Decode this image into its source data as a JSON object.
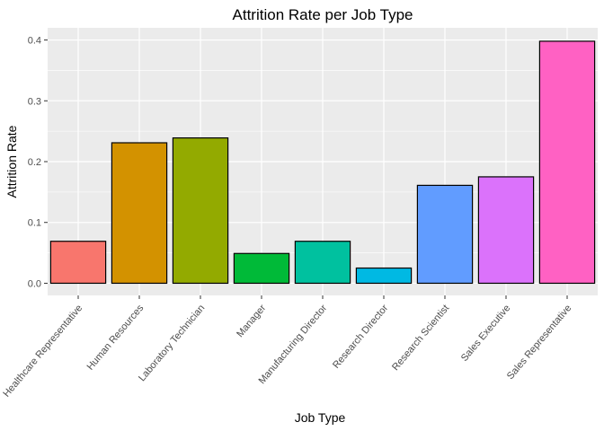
{
  "chart_data": {
    "type": "bar",
    "title": "Attrition Rate per Job Type",
    "xlabel": "Job Type",
    "ylabel": "Attrition Rate",
    "categories": [
      "Healthcare Representative",
      "Human Resources",
      "Laboratory Technician",
      "Manager",
      "Manufacturing Director",
      "Research Director",
      "Research Scientist",
      "Sales Executive",
      "Sales Representative"
    ],
    "values": [
      0.069,
      0.231,
      0.239,
      0.049,
      0.069,
      0.025,
      0.161,
      0.175,
      0.398
    ],
    "colors": [
      "#F8766D",
      "#D39200",
      "#93AA00",
      "#00BA38",
      "#00C19F",
      "#00B9E3",
      "#619CFF",
      "#DB72FB",
      "#FF61C3"
    ],
    "ylim": [
      -0.02,
      0.42
    ],
    "yticks": [
      0.0,
      0.1,
      0.2,
      0.3,
      0.4
    ],
    "ytick_labels": [
      "0.0",
      "0.1",
      "0.2",
      "0.3",
      "0.4"
    ],
    "grid": true,
    "legend": "none",
    "panel_color": "#EBEBEB"
  }
}
